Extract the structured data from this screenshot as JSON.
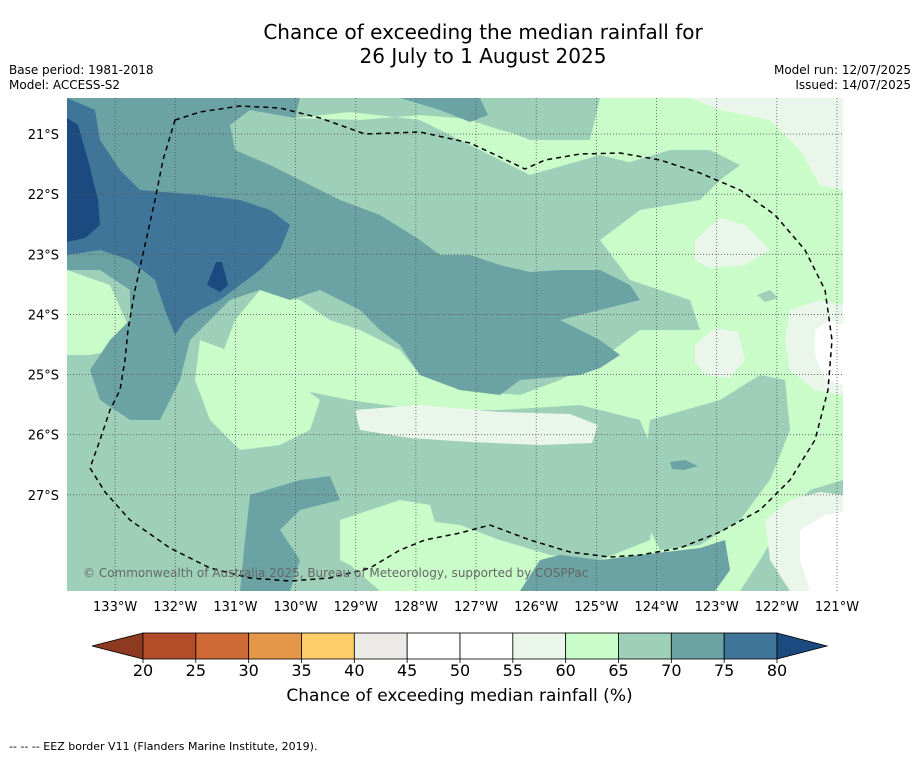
{
  "title": {
    "line1": "Chance of exceeding the median rainfall for",
    "line2": "26 July to 1 August 2025"
  },
  "meta": {
    "base_period": "Base period: 1981-2018",
    "model": "Model: ACCESS-S2",
    "model_run": "Model run: 12/07/2025",
    "issued": "Issued: 14/07/2025"
  },
  "map": {
    "copyright": "© Commonwealth of Australia 2025, Bureau of Meteorology, supported by COSPPac",
    "lon_labels": [
      "133°W",
      "132°W",
      "131°W",
      "130°W",
      "129°W",
      "128°W",
      "127°W",
      "126°W",
      "125°W",
      "124°W",
      "123°W",
      "122°W",
      "121°W"
    ],
    "lat_labels": [
      "21°S",
      "22°S",
      "23°S",
      "24°S",
      "25°S",
      "26°S",
      "27°S"
    ],
    "lon_range": [
      133.8,
      120.9
    ],
    "lat_range": [
      -20.4,
      -28.6
    ],
    "eez_border": "dashed"
  },
  "colorbar": {
    "label": "Chance of exceeding median rainfall (%)",
    "ticks": [
      "20",
      "25",
      "30",
      "35",
      "40",
      "45",
      "50",
      "55",
      "60",
      "65",
      "70",
      "75",
      "80"
    ],
    "colors": [
      "#b34d29",
      "#cf6a37",
      "#e39747",
      "#fdcd68",
      "#eceae6",
      "#ffffff",
      "#ffffff",
      "#eaf6ea",
      "#c9fcc9",
      "#9ed0b9",
      "#6ba3a4",
      "#3f7599"
    ],
    "low_extend_color": "#8e3a20",
    "high_extend_color": "#1a4a80"
  },
  "legend_colors": {
    "p55_60": "#eaf6ea",
    "p60_65": "#c9fcc9",
    "p65_70": "#9ed0b9",
    "p70_75": "#6ba3a4",
    "p75_80": "#3f7599",
    "p80plus": "#1a4a80"
  },
  "footer": "--  --  -- EEZ border V11 (Flanders Marine Institute, 2019)."
}
